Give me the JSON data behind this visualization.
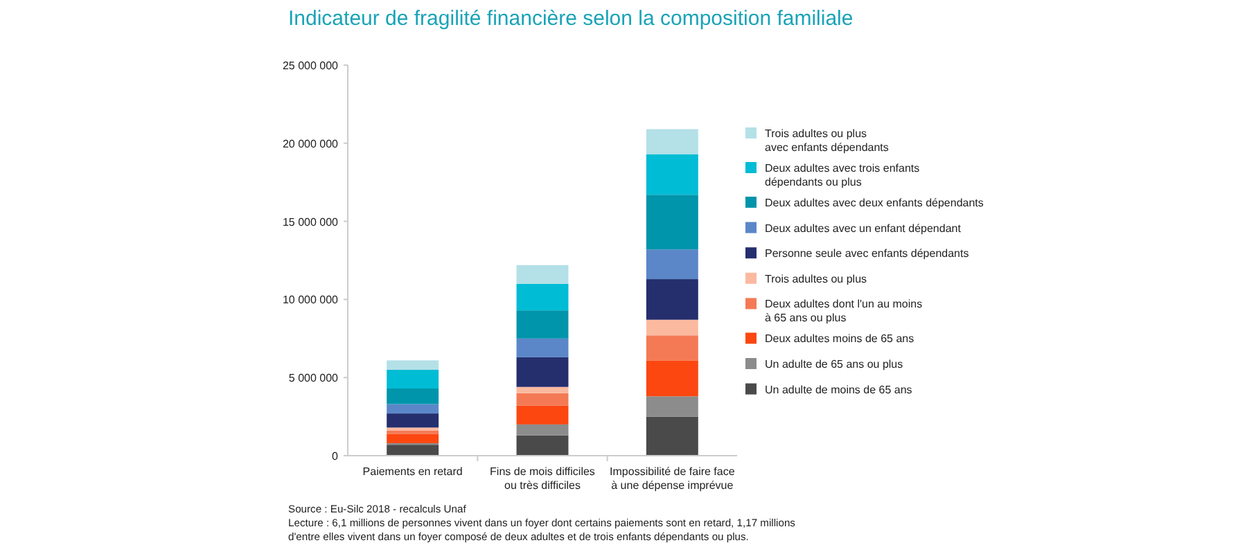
{
  "chart_data": {
    "type": "bar",
    "stacked": true,
    "title": "Indicateur de fragilité financière selon la composition familiale",
    "categories": [
      "Paiements en retard",
      "Fins de mois difficiles\nou très difficiles",
      "Impossibilité de faire face\nà une dépense imprévue"
    ],
    "series": [
      {
        "name": "Un adulte de moins de 65 ans",
        "color": "#4a4a4a",
        "values": [
          700000,
          1300000,
          2500000
        ]
      },
      {
        "name": "Un adulte de 65 ans ou plus",
        "color": "#8c8c8c",
        "values": [
          100000,
          700000,
          1300000
        ]
      },
      {
        "name": "Deux adultes moins de 65 ans",
        "color": "#fc4711",
        "values": [
          600000,
          1200000,
          2300000
        ]
      },
      {
        "name": "Deux adultes dont l'un au moins\nà 65 ans ou plus",
        "color": "#f47a55",
        "values": [
          200000,
          800000,
          1600000
        ]
      },
      {
        "name": "Trois adultes ou plus",
        "color": "#fbb9a0",
        "values": [
          200000,
          400000,
          1000000
        ]
      },
      {
        "name": "Personne seule avec enfants dépendants",
        "color": "#252f6e",
        "values": [
          900000,
          1900000,
          2600000
        ]
      },
      {
        "name": "Deux adultes avec un enfant dépendant",
        "color": "#5b87c9",
        "values": [
          600000,
          1200000,
          1900000
        ]
      },
      {
        "name": "Deux adultes avec deux enfants dépendants",
        "color": "#0095ab",
        "values": [
          1000000,
          1800000,
          3500000
        ]
      },
      {
        "name": "Deux adultes avec trois enfants\ndépendants ou plus",
        "color": "#00bcd4",
        "values": [
          1200000,
          1700000,
          2600000
        ]
      },
      {
        "name": "Trois adultes ou plus\navec enfants dépendants",
        "color": "#b4e0e8",
        "values": [
          600000,
          1200000,
          1600000
        ]
      }
    ],
    "ylim": [
      0,
      25000000
    ],
    "yticks": [
      0,
      {
        "value": 5000000,
        "label": "5 000 000"
      },
      {
        "value": 10000000,
        "label": "10 000 000"
      },
      {
        "value": 15000000,
        "label": "15 000 000"
      },
      {
        "value": 20000000,
        "label": "20 000 000"
      },
      {
        "value": 25000000,
        "label": "25 000 000"
      }
    ],
    "grid": false,
    "legend": "right",
    "annotations": [
      "Source : Eu-Silc 2018 - recalculs Unaf",
      "Lecture : 6,1 millions de personnes vivent dans un foyer dont certains paiements sont en retard, 1,17 millions\nd'entre elles vivent dans un foyer composé de deux adultes et de trois enfants dépendants ou plus."
    ]
  }
}
